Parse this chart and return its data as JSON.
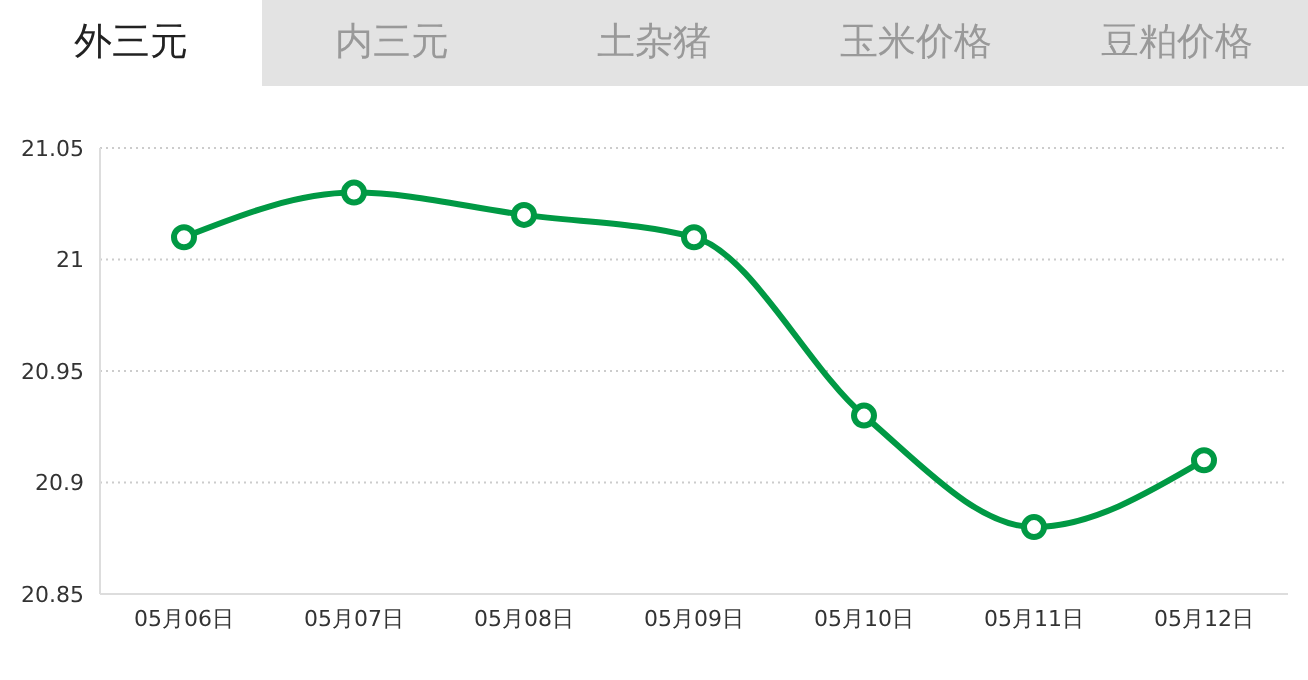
{
  "chart_data": {
    "type": "line",
    "annotations": [
      "外三元",
      "内三元",
      "土杂猪",
      "玉米价格",
      "豆粕价格"
    ],
    "categories": [
      "05月06日",
      "05月07日",
      "05月08日",
      "05月09日",
      "05月10日",
      "05月11日",
      "05月12日"
    ],
    "series": [
      {
        "color": "#009944",
        "values": [
          21.01,
          21.03,
          21.02,
          21.01,
          20.93,
          20.88,
          20.91
        ]
      }
    ],
    "ylim": [
      20.85,
      21.05
    ],
    "yticks": [
      20.85,
      20.9,
      20.95,
      21,
      21.05
    ],
    "grid": "y",
    "marker": "circle",
    "line_style": "solid",
    "legend": false
  }
}
